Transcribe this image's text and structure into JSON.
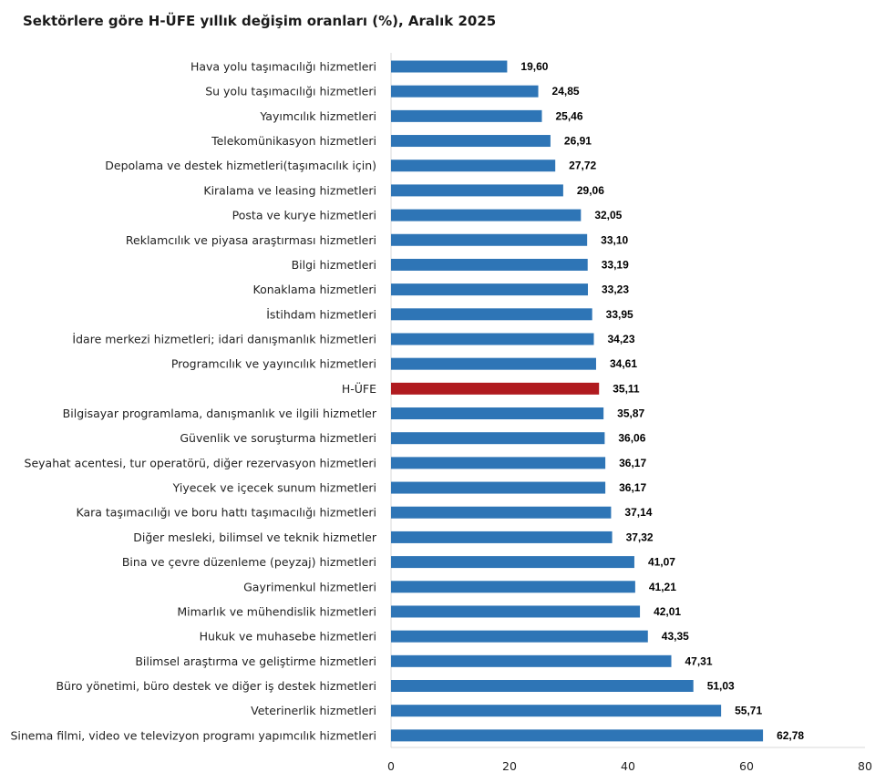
{
  "chart_data": {
    "type": "bar",
    "orientation": "horizontal",
    "title": "Sektörlere göre H-ÜFE yıllık değişim oranları (%), Aralık 2025",
    "categories": [
      "Hava yolu taşımacılığı hizmetleri",
      "Su yolu taşımacılığı hizmetleri",
      "Yayımcılık hizmetleri",
      "Telekomünikasyon hizmetleri",
      "Depolama ve destek hizmetleri(taşımacılık için)",
      "Kiralama ve leasing hizmetleri",
      "Posta ve kurye hizmetleri",
      "Reklamcılık ve piyasa araştırması hizmetleri",
      "Bilgi hizmetleri",
      "Konaklama hizmetleri",
      "İstihdam hizmetleri",
      "İdare merkezi hizmetleri; idari danışmanlık hizmetleri",
      "Programcılık ve yayıncılık hizmetleri",
      "H-ÜFE",
      "Bilgisayar programlama, danışmanlık ve ilgili hizmetler",
      "Güvenlik ve soruşturma hizmetleri",
      "Seyahat acentesi, tur operatörü, diğer rezervasyon hizmetleri",
      "Yiyecek ve içecek sunum hizmetleri",
      "Kara taşımacılığı ve boru hattı taşımacılığı hizmetleri",
      "Diğer mesleki, bilimsel ve teknik hizmetler",
      "Bina ve çevre düzenleme (peyzaj) hizmetleri",
      "Gayrimenkul hizmetleri",
      "Mimarlık ve mühendislik hizmetleri",
      "Hukuk ve muhasebe hizmetleri",
      "Bilimsel araştırma ve geliştirme hizmetleri",
      "Büro yönetimi, büro destek ve diğer iş destek hizmetleri",
      "Veterinerlik hizmetleri",
      "Sinema filmi, video ve televizyon programı yapımcılık hizmetleri"
    ],
    "values": [
      19.6,
      24.85,
      25.46,
      26.91,
      27.72,
      29.06,
      32.05,
      33.1,
      33.19,
      33.23,
      33.95,
      34.23,
      34.61,
      35.11,
      35.87,
      36.06,
      36.17,
      36.17,
      37.14,
      37.32,
      41.07,
      41.21,
      42.01,
      43.35,
      47.31,
      51.03,
      55.71,
      62.78
    ],
    "value_labels": [
      "19,60",
      "24,85",
      "25,46",
      "26,91",
      "27,72",
      "29,06",
      "32,05",
      "33,10",
      "33,19",
      "33,23",
      "33,95",
      "34,23",
      "34,61",
      "35,11",
      "35,87",
      "36,06",
      "36,17",
      "36,17",
      "37,14",
      "37,32",
      "41,07",
      "41,21",
      "42,01",
      "43,35",
      "47,31",
      "51,03",
      "55,71",
      "62,78"
    ],
    "highlight_category": "H-ÜFE",
    "xlim": [
      0,
      80
    ],
    "x_ticks": [
      0,
      20,
      40,
      60,
      80
    ],
    "xlabel": "",
    "ylabel": "",
    "grid": false,
    "legend": "none",
    "colors": {
      "bar": "#2e75b6",
      "highlight": "#b01a1f",
      "axis": "#d9d9d9"
    }
  }
}
